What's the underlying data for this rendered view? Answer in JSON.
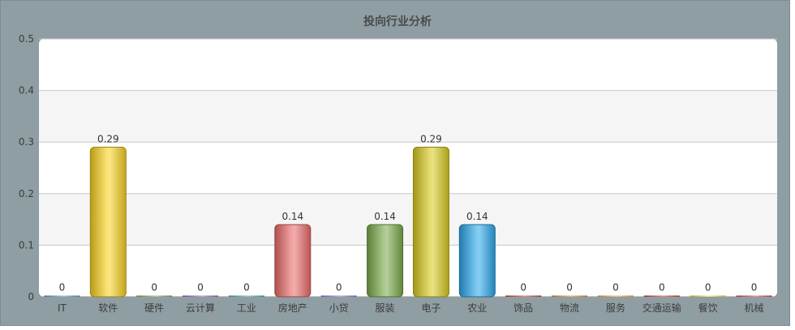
{
  "chart_data": {
    "type": "bar",
    "title": "投向行业分析",
    "categories": [
      "IT",
      "软件",
      "硬件",
      "云计算",
      "工业",
      "房地产",
      "小贷",
      "服装",
      "电子",
      "农业",
      "饰品",
      "物流",
      "服务",
      "交通运输",
      "餐饮",
      "机械"
    ],
    "values": [
      0,
      0.29,
      0,
      0,
      0,
      0.14,
      0,
      0.14,
      0.29,
      0.14,
      0,
      0,
      0,
      0,
      0,
      0
    ],
    "value_labels": [
      "0",
      "0.29",
      "0",
      "0",
      "0",
      "0.14",
      "0",
      "0.14",
      "0.29",
      "0.14",
      "0",
      "0",
      "0",
      "0",
      "0",
      "0"
    ],
    "colors": [
      "#5b8fd6",
      "#f5d020",
      "#6aa84f",
      "#9b59b6",
      "#3aa6a6",
      "#e86a6a",
      "#7f6bd6",
      "#7aa84a",
      "#d6c81e",
      "#2ba6e8",
      "#c0392b",
      "#d08a2e",
      "#e8a23a",
      "#c0392b",
      "#e8d23a",
      "#d04040"
    ],
    "ylim": [
      0,
      0.5
    ],
    "yticks": [
      "0",
      "0.1",
      "0.2",
      "0.3",
      "0.4",
      "0.5"
    ],
    "xlabel": "",
    "ylabel": "",
    "grid": true,
    "legend": "none"
  }
}
